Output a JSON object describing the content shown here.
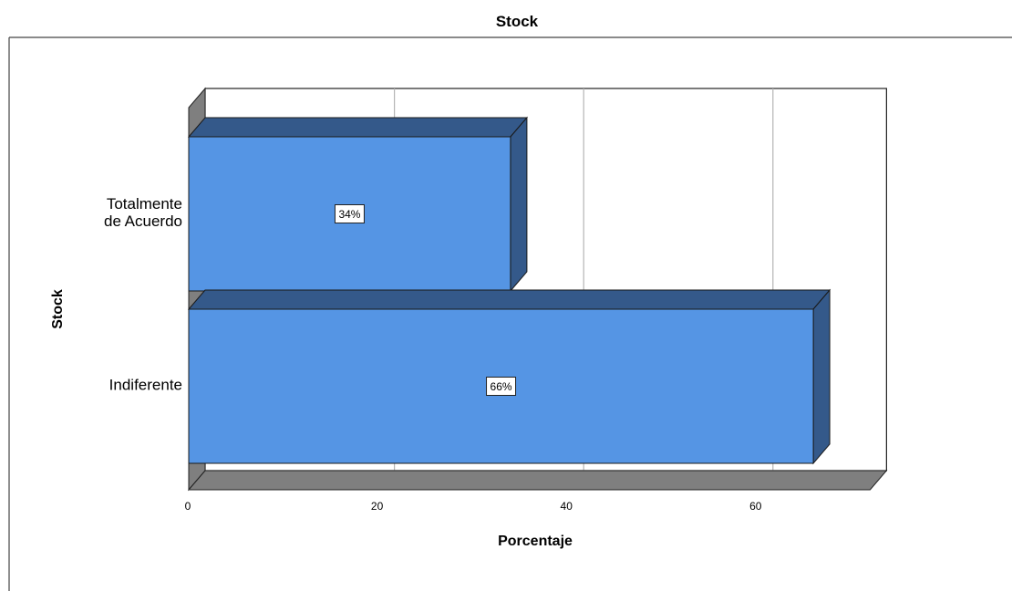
{
  "chart_data": {
    "type": "bar",
    "orientation": "horizontal",
    "title": "Stock",
    "xlabel": "Porcentaje",
    "ylabel": "Stock",
    "categories": [
      "Totalmente\nde Acuerdo",
      "Indiferente"
    ],
    "values": [
      34,
      66
    ],
    "data_labels": [
      "34%",
      "66%"
    ],
    "xlim": [
      0,
      72
    ],
    "x_ticks": [
      "0",
      "20",
      "40",
      "60"
    ],
    "grid": true,
    "legend": "none",
    "colors": {
      "bar_face": "#5595E4",
      "bar_side": "#34598A",
      "floor": "#7F7F7F"
    }
  }
}
